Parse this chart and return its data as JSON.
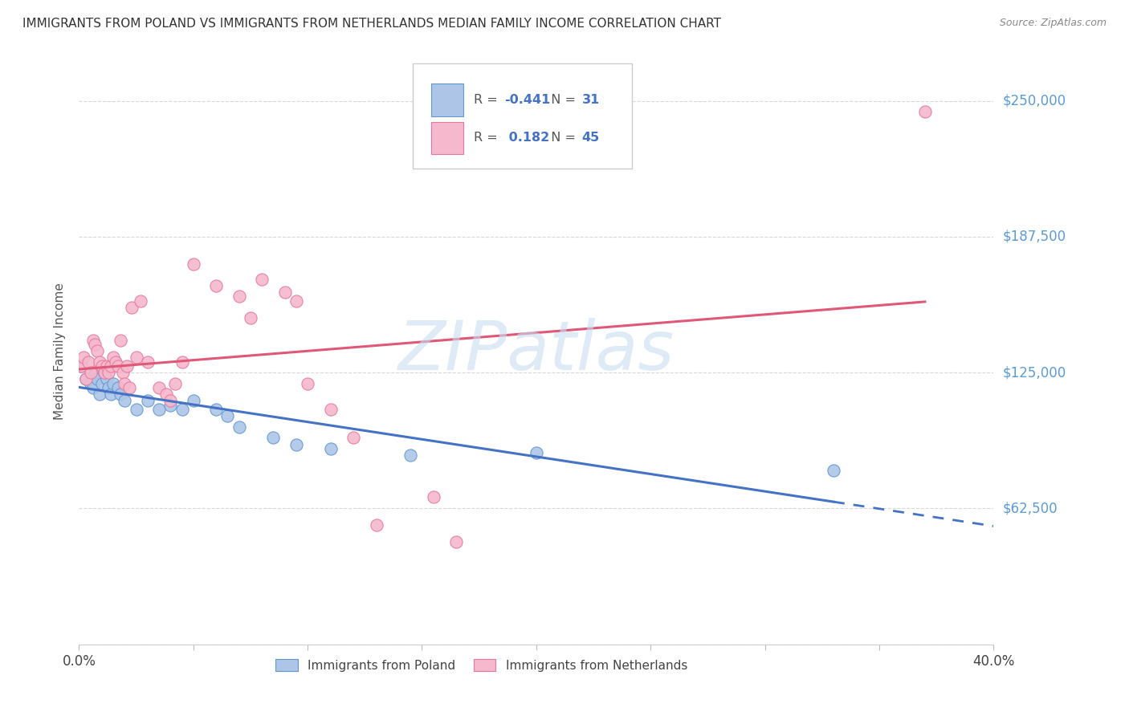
{
  "title": "IMMIGRANTS FROM POLAND VS IMMIGRANTS FROM NETHERLANDS MEDIAN FAMILY INCOME CORRELATION CHART",
  "source": "Source: ZipAtlas.com",
  "ylabel": "Median Family Income",
  "xlim": [
    0.0,
    0.4
  ],
  "ylim": [
    0,
    270000
  ],
  "yticks": [
    0,
    62500,
    125000,
    187500,
    250000
  ],
  "ytick_labels": [
    "",
    "$62,500",
    "$125,000",
    "$187,500",
    "$250,000"
  ],
  "xticks": [
    0.0,
    0.05,
    0.1,
    0.15,
    0.2,
    0.25,
    0.3,
    0.35,
    0.4
  ],
  "xtick_labels": [
    "0.0%",
    "",
    "",
    "",
    "",
    "",
    "",
    "",
    "40.0%"
  ],
  "legend_poland_r": "-0.441",
  "legend_poland_n": "31",
  "legend_netherlands_r": "0.182",
  "legend_netherlands_n": "45",
  "color_poland_fill": "#adc6e8",
  "color_netherlands_fill": "#f5b8cc",
  "color_poland_edge": "#6496d2",
  "color_netherlands_edge": "#e8789a",
  "color_poland_line": "#4472c4",
  "color_netherlands_line": "#e05878",
  "color_ytick": "#5b9bd5",
  "color_title": "#333333",
  "color_source": "#888888",
  "color_grid": "#d8d8d8",
  "color_legend_text_dark": "#555555",
  "color_legend_num": "#4472c4",
  "watermark_color": "#c8ddf0",
  "poland_x": [
    0.001,
    0.003,
    0.005,
    0.006,
    0.007,
    0.008,
    0.009,
    0.01,
    0.011,
    0.012,
    0.013,
    0.014,
    0.015,
    0.017,
    0.018,
    0.02,
    0.025,
    0.03,
    0.035,
    0.04,
    0.045,
    0.05,
    0.06,
    0.065,
    0.07,
    0.085,
    0.095,
    0.11,
    0.145,
    0.2,
    0.33
  ],
  "poland_y": [
    128000,
    122000,
    120000,
    118000,
    125000,
    122000,
    115000,
    120000,
    125000,
    122000,
    118000,
    115000,
    120000,
    118000,
    115000,
    112000,
    108000,
    112000,
    108000,
    110000,
    108000,
    112000,
    108000,
    105000,
    100000,
    95000,
    92000,
    90000,
    87000,
    88000,
    80000
  ],
  "netherlands_x": [
    0.001,
    0.002,
    0.003,
    0.004,
    0.005,
    0.006,
    0.007,
    0.008,
    0.009,
    0.01,
    0.011,
    0.012,
    0.013,
    0.014,
    0.015,
    0.016,
    0.017,
    0.018,
    0.019,
    0.02,
    0.021,
    0.022,
    0.023,
    0.025,
    0.027,
    0.03,
    0.035,
    0.038,
    0.04,
    0.042,
    0.045,
    0.05,
    0.06,
    0.07,
    0.075,
    0.08,
    0.09,
    0.095,
    0.1,
    0.11,
    0.12,
    0.13,
    0.155,
    0.165,
    0.37
  ],
  "netherlands_y": [
    128000,
    132000,
    122000,
    130000,
    125000,
    140000,
    138000,
    135000,
    130000,
    128000,
    125000,
    128000,
    125000,
    128000,
    132000,
    130000,
    128000,
    140000,
    125000,
    120000,
    128000,
    118000,
    155000,
    132000,
    158000,
    130000,
    118000,
    115000,
    112000,
    120000,
    130000,
    175000,
    165000,
    160000,
    150000,
    168000,
    162000,
    158000,
    120000,
    108000,
    95000,
    55000,
    68000,
    47000,
    245000
  ]
}
